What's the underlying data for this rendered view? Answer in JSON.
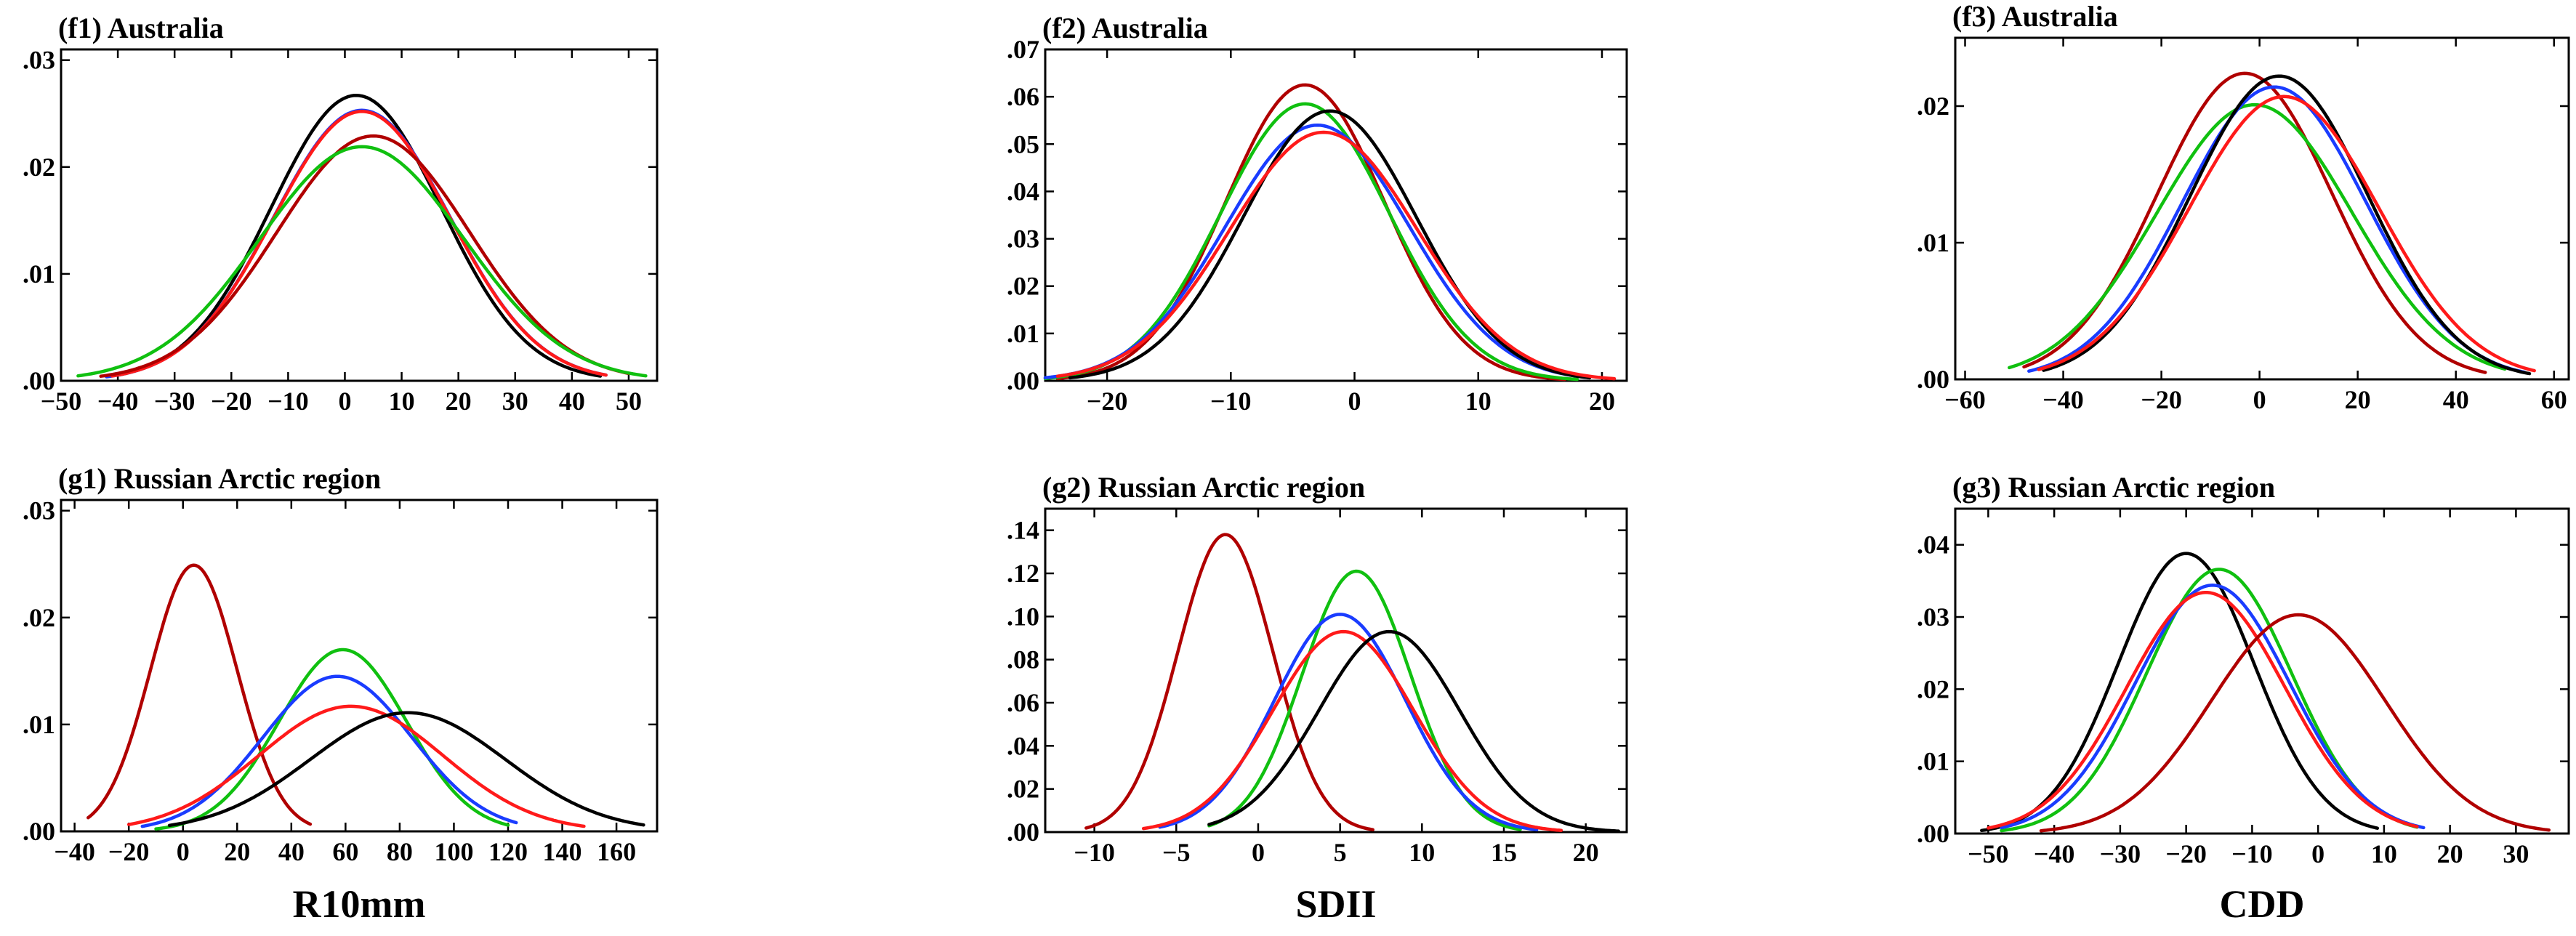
{
  "colors": {
    "black": "#000000",
    "blue": "#1a3cff",
    "green": "#10c010",
    "red": "#ff1a1a",
    "darkred": "#b00000"
  },
  "chart_data": [
    {
      "type": "line",
      "title": "(f1) Australia",
      "xlabel": "",
      "xlim": [
        -50,
        55
      ],
      "ylim": [
        0,
        0.031
      ],
      "xticks": [
        -50,
        -40,
        -30,
        -20,
        -10,
        0,
        10,
        20,
        30,
        40,
        50
      ],
      "xtick_labels": [
        "−50",
        "−40",
        "−30",
        "−20",
        "−10",
        "0",
        "10",
        "20",
        "30",
        "40",
        "50"
      ],
      "yticks": [
        0,
        0.01,
        0.02,
        0.03
      ],
      "ytick_labels": [
        ".00",
        ".01",
        ".02",
        ".03"
      ],
      "series": [
        {
          "color": "black",
          "mean": 2,
          "sd": 15,
          "peak": 0.0267,
          "range": [
            -40,
            45
          ]
        },
        {
          "color": "blue",
          "mean": 3,
          "sd": 15.5,
          "peak": 0.0253,
          "range": [
            -42,
            46
          ]
        },
        {
          "color": "red",
          "mean": 3,
          "sd": 15.5,
          "peak": 0.0252,
          "range": [
            -41,
            46
          ]
        },
        {
          "color": "darkred",
          "mean": 5,
          "sd": 17,
          "peak": 0.0229,
          "range": [
            -43,
            50
          ]
        },
        {
          "color": "green",
          "mean": 3,
          "sd": 18,
          "peak": 0.0219,
          "range": [
            -47,
            53
          ]
        }
      ]
    },
    {
      "type": "line",
      "title": "(f2) Australia",
      "xlabel": "",
      "xlim": [
        -25,
        22
      ],
      "ylim": [
        0,
        0.07
      ],
      "xticks": [
        -20,
        -10,
        0,
        10,
        20
      ],
      "xtick_labels": [
        "−20",
        "−10",
        "0",
        "10",
        "20"
      ],
      "yticks": [
        0,
        0.01,
        0.02,
        0.03,
        0.04,
        0.05,
        0.06,
        0.07
      ],
      "ytick_labels": [
        ".00",
        ".01",
        ".02",
        ".03",
        ".04",
        ".05",
        ".06",
        ".07"
      ],
      "series": [
        {
          "color": "darkred",
          "mean": -4,
          "sd": 6.4,
          "peak": 0.0625,
          "range": [
            -24,
            17
          ]
        },
        {
          "color": "green",
          "mean": -4,
          "sd": 6.8,
          "peak": 0.0585,
          "range": [
            -25,
            18
          ]
        },
        {
          "color": "blue",
          "mean": -3,
          "sd": 7.4,
          "peak": 0.054,
          "range": [
            -25,
            19
          ]
        },
        {
          "color": "black",
          "mean": -2,
          "sd": 7.0,
          "peak": 0.057,
          "range": [
            -23,
            19
          ]
        },
        {
          "color": "red",
          "mean": -2.5,
          "sd": 7.6,
          "peak": 0.0525,
          "range": [
            -24,
            21
          ]
        }
      ]
    },
    {
      "type": "line",
      "title": "(f3) Australia",
      "xlabel": "",
      "xlim": [
        -62,
        63
      ],
      "ylim": [
        0,
        0.025
      ],
      "xticks": [
        -60,
        -40,
        -20,
        0,
        20,
        40,
        60
      ],
      "xtick_labels": [
        "−60",
        "−40",
        "−20",
        "0",
        "20",
        "40",
        "60"
      ],
      "yticks": [
        0,
        0.01,
        0.02
      ],
      "ytick_labels": [
        ".00",
        ".01",
        ".02"
      ],
      "series": [
        {
          "color": "darkred",
          "mean": -3,
          "sd": 17.8,
          "peak": 0.0224,
          "range": [
            -48,
            46
          ]
        },
        {
          "color": "green",
          "mean": -1,
          "sd": 19.9,
          "peak": 0.0201,
          "range": [
            -51,
            50
          ]
        },
        {
          "color": "blue",
          "mean": 3,
          "sd": 18.7,
          "peak": 0.0214,
          "range": [
            -47,
            54
          ]
        },
        {
          "color": "black",
          "mean": 4,
          "sd": 18.1,
          "peak": 0.0222,
          "range": [
            -44,
            55
          ]
        },
        {
          "color": "red",
          "mean": 5,
          "sd": 19.3,
          "peak": 0.0207,
          "range": [
            -45,
            56
          ]
        }
      ]
    },
    {
      "type": "line",
      "title": "(g1) Russian Arctic region",
      "xlabel": "R10mm",
      "xlim": [
        -45,
        175
      ],
      "ylim": [
        0,
        0.031
      ],
      "xticks": [
        -40,
        -20,
        0,
        20,
        40,
        60,
        80,
        100,
        120,
        140,
        160
      ],
      "xtick_labels": [
        "−40",
        "−20",
        "0",
        "20",
        "40",
        "60",
        "80",
        "100",
        "120",
        "140",
        "160"
      ],
      "yticks": [
        0,
        0.01,
        0.02,
        0.03
      ],
      "ytick_labels": [
        ".00",
        ".01",
        ".02",
        ".03"
      ],
      "series": [
        {
          "color": "darkred",
          "mean": 4,
          "sd": 16,
          "peak": 0.0249,
          "range": [
            -35,
            47
          ]
        },
        {
          "color": "green",
          "mean": 59,
          "sd": 23.5,
          "peak": 0.017,
          "range": [
            -10,
            120
          ]
        },
        {
          "color": "blue",
          "mean": 57,
          "sd": 27.5,
          "peak": 0.0145,
          "range": [
            -15,
            123
          ]
        },
        {
          "color": "red",
          "mean": 62,
          "sd": 34,
          "peak": 0.0117,
          "range": [
            -20,
            148
          ]
        },
        {
          "color": "black",
          "mean": 83,
          "sd": 36,
          "peak": 0.0111,
          "range": [
            -5,
            170
          ]
        }
      ]
    },
    {
      "type": "line",
      "title": "(g2) Russian Arctic region",
      "xlabel": "SDII",
      "xlim": [
        -13,
        22.5
      ],
      "ylim": [
        0,
        0.15
      ],
      "xticks": [
        -10,
        -5,
        0,
        5,
        10,
        15,
        20
      ],
      "xtick_labels": [
        "−10",
        "−5",
        "0",
        "5",
        "10",
        "15",
        "20"
      ],
      "yticks": [
        0,
        0.02,
        0.04,
        0.06,
        0.08,
        0.1,
        0.12,
        0.14
      ],
      "ytick_labels": [
        ".00",
        ".02",
        ".04",
        ".06",
        ".08",
        ".10",
        ".12",
        ".14"
      ],
      "series": [
        {
          "color": "darkred",
          "mean": -2,
          "sd": 2.9,
          "peak": 0.138,
          "range": [
            -10.5,
            7
          ]
        },
        {
          "color": "green",
          "mean": 6,
          "sd": 3.3,
          "peak": 0.121,
          "range": [
            -3,
            16
          ]
        },
        {
          "color": "blue",
          "mean": 5,
          "sd": 4.0,
          "peak": 0.101,
          "range": [
            -6,
            17
          ]
        },
        {
          "color": "red",
          "mean": 5.2,
          "sd": 4.3,
          "peak": 0.093,
          "range": [
            -7,
            18.5
          ]
        },
        {
          "color": "black",
          "mean": 8,
          "sd": 4.3,
          "peak": 0.093,
          "range": [
            -3,
            22
          ]
        }
      ]
    },
    {
      "type": "line",
      "title": "(g3) Russian Arctic region",
      "xlabel": "CDD",
      "xlim": [
        -55,
        38
      ],
      "ylim": [
        0,
        0.045
      ],
      "xticks": [
        -50,
        -40,
        -30,
        -20,
        -10,
        0,
        10,
        20,
        30
      ],
      "xtick_labels": [
        "−50",
        "−40",
        "−30",
        "−20",
        "−10",
        "0",
        "10",
        "20",
        "30"
      ],
      "yticks": [
        0,
        0.01,
        0.02,
        0.03,
        0.04
      ],
      "ytick_labels": [
        ".00",
        ".01",
        ".02",
        ".03",
        ".04"
      ],
      "series": [
        {
          "color": "black",
          "mean": -20,
          "sd": 10.3,
          "peak": 0.0388,
          "range": [
            -51,
            9
          ]
        },
        {
          "color": "green",
          "mean": -15,
          "sd": 11,
          "peak": 0.0366,
          "range": [
            -48,
            15
          ]
        },
        {
          "color": "blue",
          "mean": -16,
          "sd": 11.7,
          "peak": 0.0344,
          "range": [
            -48,
            16
          ]
        },
        {
          "color": "red",
          "mean": -17,
          "sd": 12,
          "peak": 0.0334,
          "range": [
            -50,
            15
          ]
        },
        {
          "color": "darkred",
          "mean": -3,
          "sd": 13.2,
          "peak": 0.0303,
          "range": [
            -42,
            35
          ]
        }
      ]
    }
  ]
}
